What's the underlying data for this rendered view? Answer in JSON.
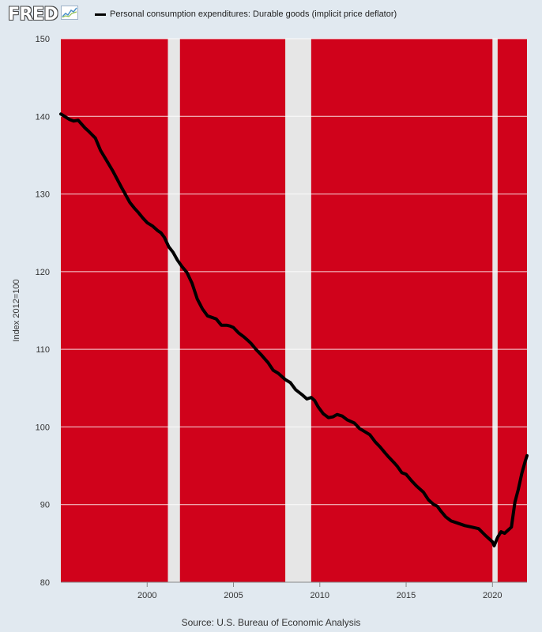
{
  "header": {
    "logo_text": "FRED",
    "logo_icon": "line-graph-icon"
  },
  "source": "Source: U.S. Bureau of Economic Analysis",
  "colors": {
    "plot_background": "#d0021b",
    "recession_band": "#e6e6e6",
    "series_line": "#000000",
    "page_background": "#e1e9f0"
  },
  "chart_data": {
    "type": "line",
    "title": "",
    "ylabel": "Index 2012=100",
    "xlabel": "",
    "ylim": [
      80,
      150
    ],
    "xlim": [
      1995.0,
      2022.0
    ],
    "yticks": [
      80,
      90,
      100,
      110,
      120,
      130,
      140,
      150
    ],
    "xticks": [
      2000,
      2005,
      2010,
      2015,
      2020
    ],
    "grid": true,
    "legend_position": "top",
    "recessions": [
      [
        2001.2,
        2001.9
      ],
      [
        2008.0,
        2009.5
      ],
      [
        2020.0,
        2020.3
      ]
    ],
    "series": [
      {
        "name": "Personal consumption expenditures: Durable goods (implicit price deflator)",
        "x": [
          1995.0,
          1995.5,
          1995.75,
          1996.0,
          1996.4,
          1996.6,
          1997.0,
          1997.3,
          1997.6,
          1998.0,
          1998.5,
          1999.0,
          1999.25,
          1999.5,
          1999.75,
          2000.0,
          2000.3,
          2000.6,
          2000.8,
          2001.0,
          2001.25,
          2001.5,
          2001.75,
          2002.0,
          2002.3,
          2002.6,
          2002.9,
          2003.2,
          2003.5,
          2003.75,
          2004.0,
          2004.3,
          2004.6,
          2004.8,
          2005.0,
          2005.3,
          2005.6,
          2005.8,
          2006.0,
          2006.3,
          2006.6,
          2007.0,
          2007.3,
          2007.6,
          2008.0,
          2008.3,
          2008.6,
          2009.0,
          2009.25,
          2009.5,
          2009.7,
          2009.9,
          2010.2,
          2010.5,
          2010.75,
          2011.0,
          2011.3,
          2011.6,
          2012.0,
          2012.3,
          2012.6,
          2012.9,
          2013.2,
          2013.5,
          2013.8,
          2014.0,
          2014.3,
          2014.5,
          2014.75,
          2015.0,
          2015.3,
          2015.6,
          2016.0,
          2016.3,
          2016.6,
          2016.8,
          2017.0,
          2017.3,
          2017.6,
          2018.0,
          2018.4,
          2018.8,
          2019.2,
          2019.6,
          2020.0,
          2020.1,
          2020.3,
          2020.5,
          2020.7,
          2020.9,
          2021.1,
          2021.3,
          2021.5,
          2021.7,
          2021.9,
          2022.0
        ],
        "y": [
          140.3,
          139.6,
          139.4,
          139.5,
          138.5,
          138.1,
          137.2,
          135.6,
          134.5,
          133.0,
          130.9,
          128.9,
          128.2,
          127.6,
          126.9,
          126.3,
          125.9,
          125.3,
          125.0,
          124.4,
          123.2,
          122.5,
          121.5,
          120.7,
          119.9,
          118.5,
          116.5,
          115.2,
          114.3,
          114.1,
          113.9,
          113.1,
          113.1,
          113.0,
          112.8,
          112.1,
          111.6,
          111.2,
          110.8,
          110.0,
          109.3,
          108.3,
          107.3,
          106.9,
          106.1,
          105.7,
          104.8,
          104.1,
          103.6,
          103.8,
          103.4,
          102.6,
          101.7,
          101.2,
          101.3,
          101.6,
          101.4,
          100.9,
          100.5,
          99.8,
          99.4,
          99.0,
          98.1,
          97.4,
          96.6,
          96.1,
          95.4,
          94.9,
          94.1,
          93.9,
          93.1,
          92.4,
          91.6,
          90.6,
          90.0,
          89.8,
          89.2,
          88.4,
          87.9,
          87.6,
          87.3,
          87.1,
          86.9,
          86.0,
          85.2,
          84.7,
          85.8,
          86.5,
          86.3,
          86.7,
          87.1,
          90.3,
          92.0,
          94.0,
          95.6,
          96.3
        ]
      }
    ]
  }
}
